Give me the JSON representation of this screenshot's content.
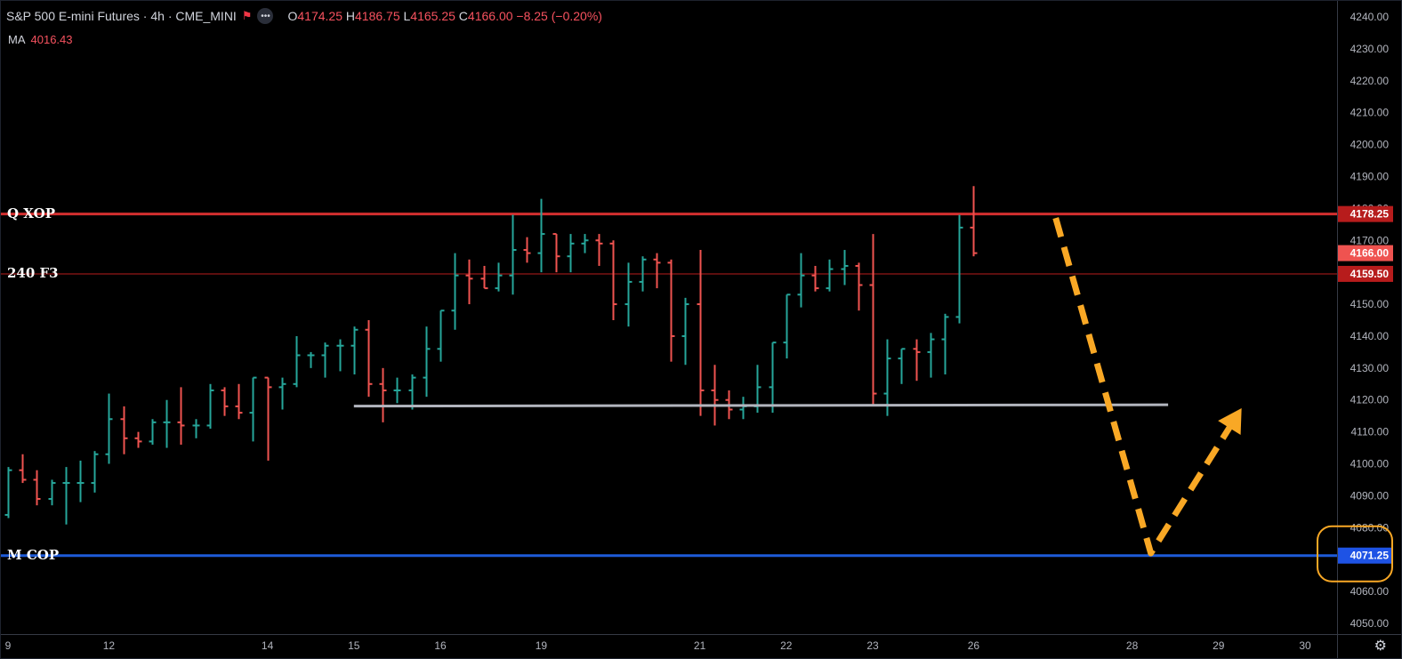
{
  "legend": {
    "symbol": "S&P 500 E-mini Futures · 4h · CME_MINI",
    "open_label": "O",
    "open": "4174.25",
    "high_label": "H",
    "high": "4186.75",
    "low_label": "L",
    "low": "4165.25",
    "close_label": "C",
    "close": "4166.00",
    "change": "−8.25 (−0.20%)"
  },
  "indicator": {
    "label": "MA",
    "value": "4016.43"
  },
  "levels": [
    {
      "name": "Q XOP",
      "price": 4178.25,
      "price_label": "4178.25",
      "color": "#b71c1c",
      "line_color": "#d32f2f",
      "thick": true
    },
    {
      "name": "240 F3",
      "price": 4159.5,
      "price_label": "4159.50",
      "color": "#b71c1c",
      "line_color": "#b71c1c",
      "thick": false
    },
    {
      "name": "M COP",
      "price": 4071.25,
      "price_label": "4071.25",
      "color": "#1e53e5",
      "line_color": "#1e5bd8",
      "thick": true
    }
  ],
  "current_price_label": "4166.00",
  "colors": {
    "up": "#26a69a",
    "down": "#ef5350",
    "support": "#b2b5be",
    "arrow": "#f9a825",
    "highlight": "#f9a825",
    "axis_text": "#b2b5be"
  },
  "chart_data": {
    "type": "ohlc",
    "interval": "4h",
    "ylim": [
      4045,
      4243
    ],
    "y_ticks": [
      4050,
      4060,
      4070,
      4080,
      4090,
      4100,
      4110,
      4120,
      4130,
      4140,
      4150,
      4160,
      4170,
      4180,
      4190,
      4200,
      4210,
      4220,
      4230,
      4240
    ],
    "x_ticks": [
      {
        "label": "9",
        "bar": 0
      },
      {
        "label": "12",
        "bar": 7
      },
      {
        "label": "14",
        "bar": 18
      },
      {
        "label": "15",
        "bar": 24
      },
      {
        "label": "16",
        "bar": 30
      },
      {
        "label": "19",
        "bar": 37
      },
      {
        "label": "21",
        "bar": 48
      },
      {
        "label": "22",
        "bar": 54
      },
      {
        "label": "23",
        "bar": 60
      },
      {
        "label": "26",
        "bar": 67
      },
      {
        "label": "28",
        "bar": 78
      },
      {
        "label": "29",
        "bar": 84
      },
      {
        "label": "30",
        "bar": 90
      }
    ],
    "bars": [
      [
        4084,
        4099,
        4083,
        4098
      ],
      [
        4098,
        4103,
        4094,
        4095
      ],
      [
        4095,
        4098,
        4087,
        4089
      ],
      [
        4089,
        4095,
        4087,
        4094
      ],
      [
        4094,
        4099,
        4081,
        4094
      ],
      [
        4094,
        4101,
        4088,
        4094
      ],
      [
        4094,
        4104,
        4091,
        4103
      ],
      [
        4103,
        4122,
        4100,
        4114
      ],
      [
        4114,
        4118,
        4103,
        4108
      ],
      [
        4108,
        4110,
        4105,
        4107
      ],
      [
        4107,
        4114,
        4106,
        4113
      ],
      [
        4113,
        4120,
        4105,
        4113
      ],
      [
        4113,
        4124,
        4106,
        4112
      ],
      [
        4112,
        4114,
        4108,
        4112
      ],
      [
        4112,
        4125,
        4111,
        4123
      ],
      [
        4123,
        4124,
        4115,
        4118
      ],
      [
        4118,
        4125,
        4114,
        4116
      ],
      [
        4116,
        4127,
        4107,
        4127
      ],
      [
        4127,
        4127,
        4101,
        4124
      ],
      [
        4124,
        4127,
        4117,
        4125
      ],
      [
        4125,
        4140,
        4124,
        4134
      ],
      [
        4134,
        4135,
        4130,
        4134
      ],
      [
        4134,
        4138,
        4127,
        4137
      ],
      [
        4137,
        4139,
        4129,
        4137
      ],
      [
        4137,
        4143,
        4128,
        4142
      ],
      [
        4142,
        4145,
        4121,
        4125
      ],
      [
        4125,
        4130,
        4113,
        4123
      ],
      [
        4123,
        4127,
        4119,
        4123
      ],
      [
        4123,
        4128,
        4117,
        4127
      ],
      [
        4127,
        4143,
        4121,
        4136
      ],
      [
        4136,
        4148,
        4132,
        4148
      ],
      [
        4148,
        4166,
        4142,
        4159
      ],
      [
        4159,
        4164,
        4150,
        4158
      ],
      [
        4158,
        4162,
        4155,
        4155
      ],
      [
        4155,
        4163,
        4154,
        4159
      ],
      [
        4159,
        4178,
        4153,
        4167
      ],
      [
        4167,
        4171,
        4163,
        4166
      ],
      [
        4166,
        4183,
        4160,
        4172
      ],
      [
        4172,
        4172,
        4160,
        4165
      ],
      [
        4165,
        4172,
        4160,
        4169
      ],
      [
        4169,
        4172,
        4166,
        4170
      ],
      [
        4170,
        4172,
        4162,
        4169
      ],
      [
        4169,
        4170,
        4145,
        4150
      ],
      [
        4150,
        4163,
        4143,
        4157
      ],
      [
        4157,
        4165,
        4154,
        4164
      ],
      [
        4164,
        4166,
        4155,
        4163
      ],
      [
        4163,
        4164,
        4132,
        4140
      ],
      [
        4140,
        4152,
        4131,
        4150
      ],
      [
        4150,
        4167,
        4115,
        4123
      ],
      [
        4123,
        4131,
        4112,
        4120
      ],
      [
        4120,
        4123,
        4114,
        4117
      ],
      [
        4117,
        4121,
        4114,
        4118
      ],
      [
        4118,
        4131,
        4116,
        4124
      ],
      [
        4124,
        4138,
        4116,
        4138
      ],
      [
        4138,
        4153,
        4133,
        4153
      ],
      [
        4153,
        4166,
        4149,
        4159
      ],
      [
        4159,
        4162,
        4154,
        4155
      ],
      [
        4155,
        4164,
        4154,
        4161
      ],
      [
        4161,
        4167,
        4156,
        4162
      ],
      [
        4162,
        4163,
        4148,
        4156
      ],
      [
        4156,
        4172,
        4118,
        4122
      ],
      [
        4122,
        4139,
        4115,
        4133
      ],
      [
        4133,
        4136,
        4125,
        4136
      ],
      [
        4136,
        4139,
        4126,
        4135
      ],
      [
        4135,
        4141,
        4127,
        4139
      ],
      [
        4139,
        4147,
        4128,
        4146
      ],
      [
        4146,
        4178,
        4144,
        4174
      ],
      [
        4174,
        4187,
        4165,
        4166
      ]
    ],
    "annotations": {
      "support_line": {
        "from": [
          24,
          4118.5
        ],
        "to": [
          80.5,
          4118.5
        ]
      },
      "projection_arrow": [
        [
          72.7,
          4177
        ],
        [
          79.3,
          4072
        ],
        [
          85.4,
          4116
        ]
      ]
    }
  }
}
